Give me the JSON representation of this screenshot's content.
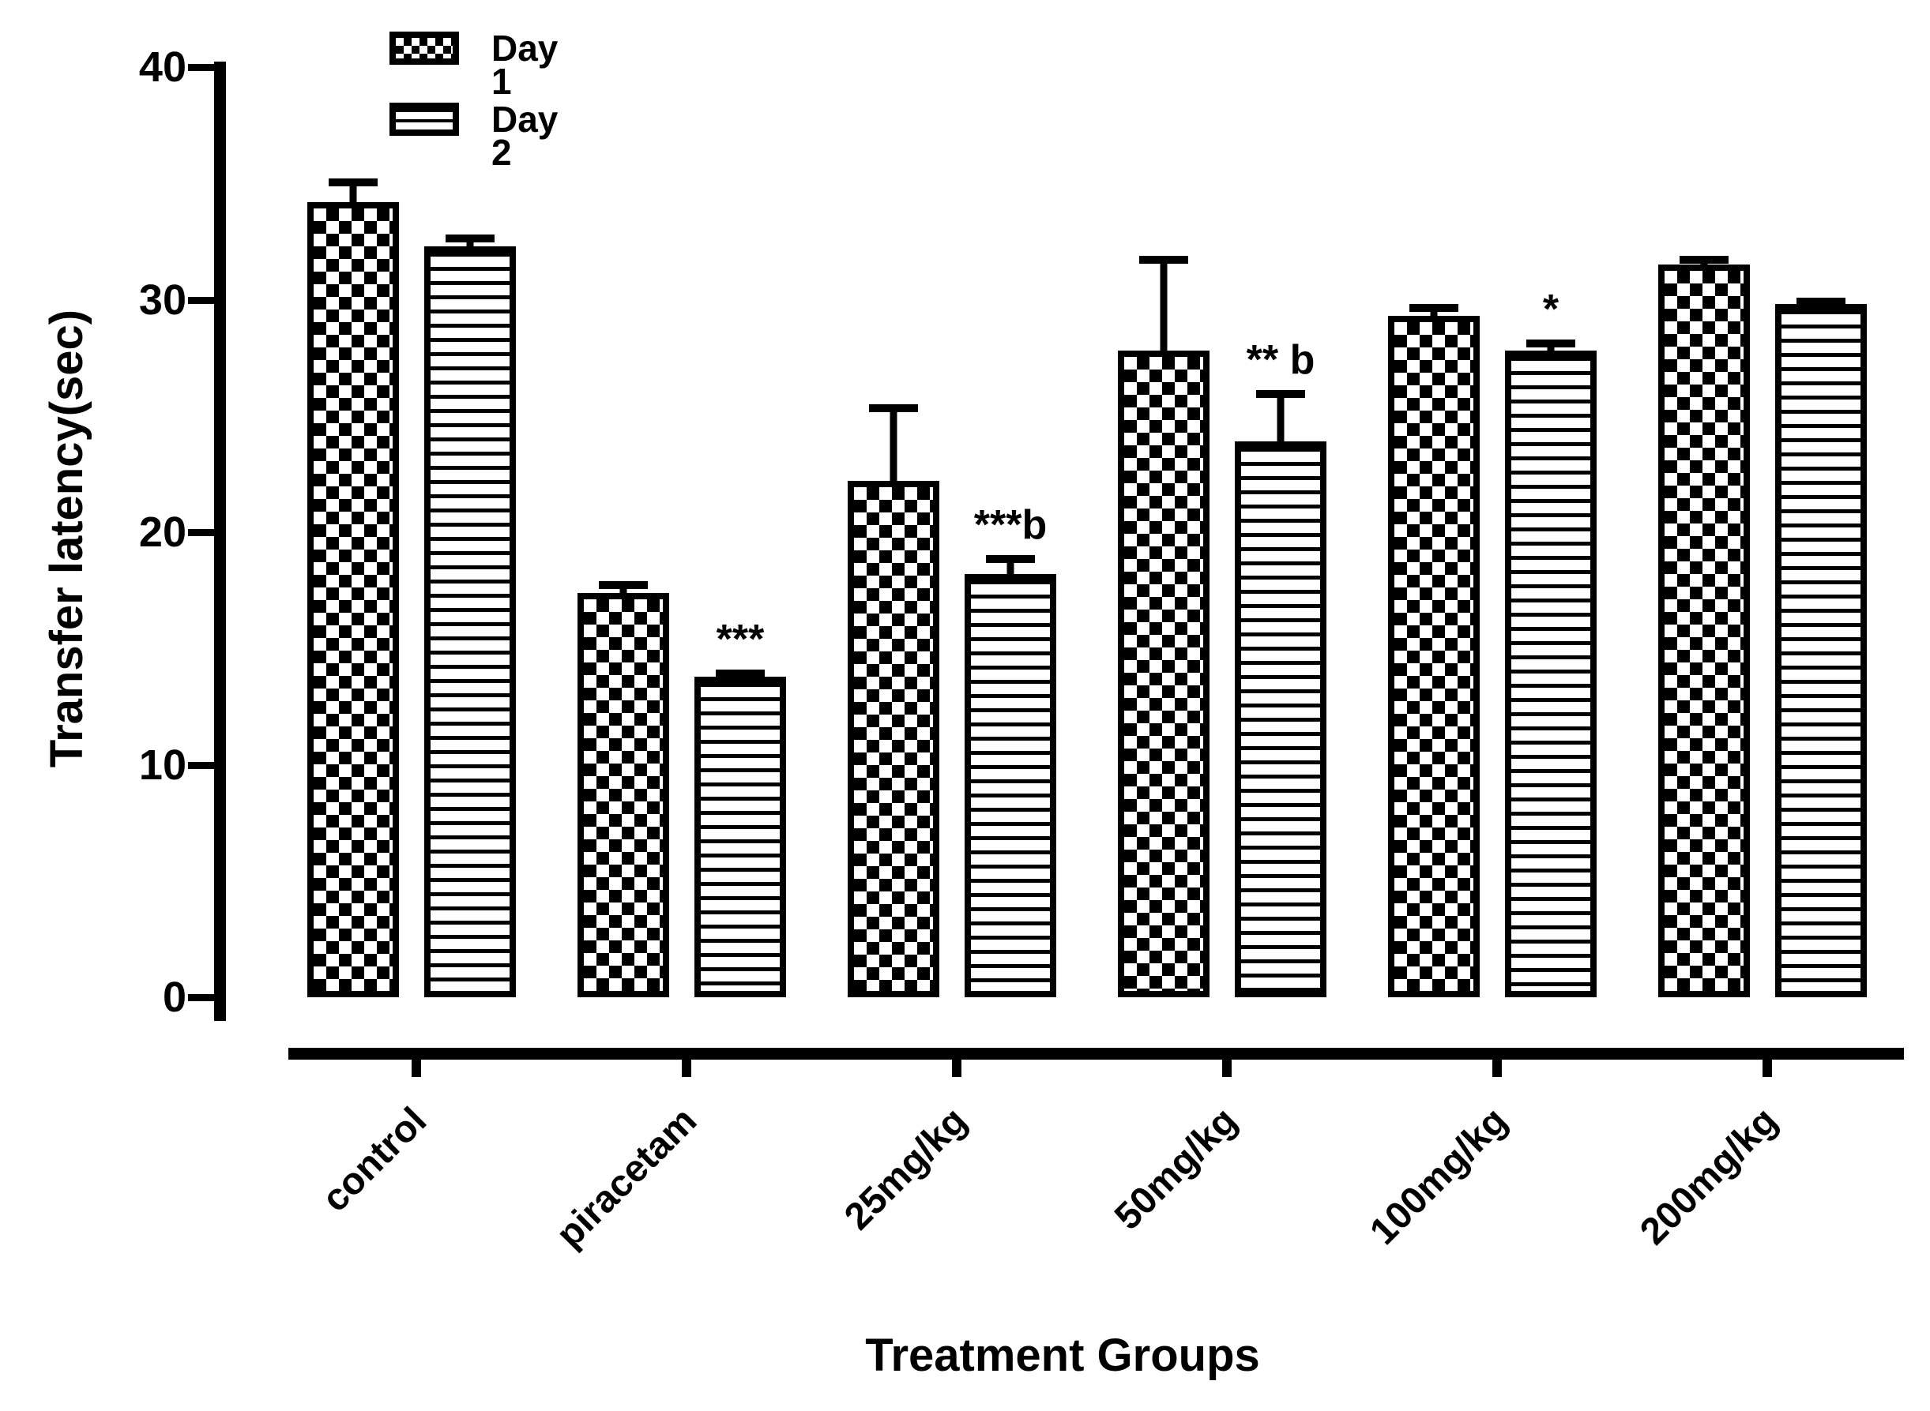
{
  "chart_data": {
    "type": "bar",
    "title": "",
    "xlabel": "Treatment Groups",
    "ylabel": "Transfer latency(sec)",
    "categories": [
      "control",
      "piracetam",
      "25mg/kg",
      "50mg/kg",
      "100mg/kg",
      "200mg/kg"
    ],
    "series": [
      {
        "name": "Day 1",
        "pattern": "checkerboard",
        "values": [
          34.2,
          17.4,
          22.2,
          27.8,
          29.3,
          31.5
        ],
        "errors_plus": [
          1.0,
          0.5,
          3.3,
          4.1,
          0.5,
          0.4
        ]
      },
      {
        "name": "Day 2",
        "pattern": "horizontal-lines",
        "values": [
          32.3,
          13.8,
          18.2,
          23.9,
          27.8,
          29.8
        ],
        "errors_plus": [
          0.5,
          0.3,
          0.8,
          2.2,
          0.5,
          0.3
        ]
      }
    ],
    "annotations": [
      {
        "category": "piracetam",
        "series": "Day 2",
        "text": "***"
      },
      {
        "category": "25mg/kg",
        "series": "Day 2",
        "text": "***b"
      },
      {
        "category": "50mg/kg",
        "series": "Day 2",
        "text": "** b"
      },
      {
        "category": "100mg/kg",
        "series": "Day 2",
        "text": "*"
      }
    ],
    "ylim": [
      0,
      40
    ],
    "yticks": [
      0,
      10,
      20,
      30,
      40
    ],
    "grid": false,
    "legend_position": "top-left-inside",
    "error_bars": "upper-only"
  },
  "legend": {
    "items": [
      {
        "label": "Day 1",
        "pattern": "checkerboard"
      },
      {
        "label": "Day 2",
        "pattern": "horizontal-lines"
      }
    ]
  },
  "colors": {
    "ink": "#000000",
    "background": "#ffffff"
  }
}
